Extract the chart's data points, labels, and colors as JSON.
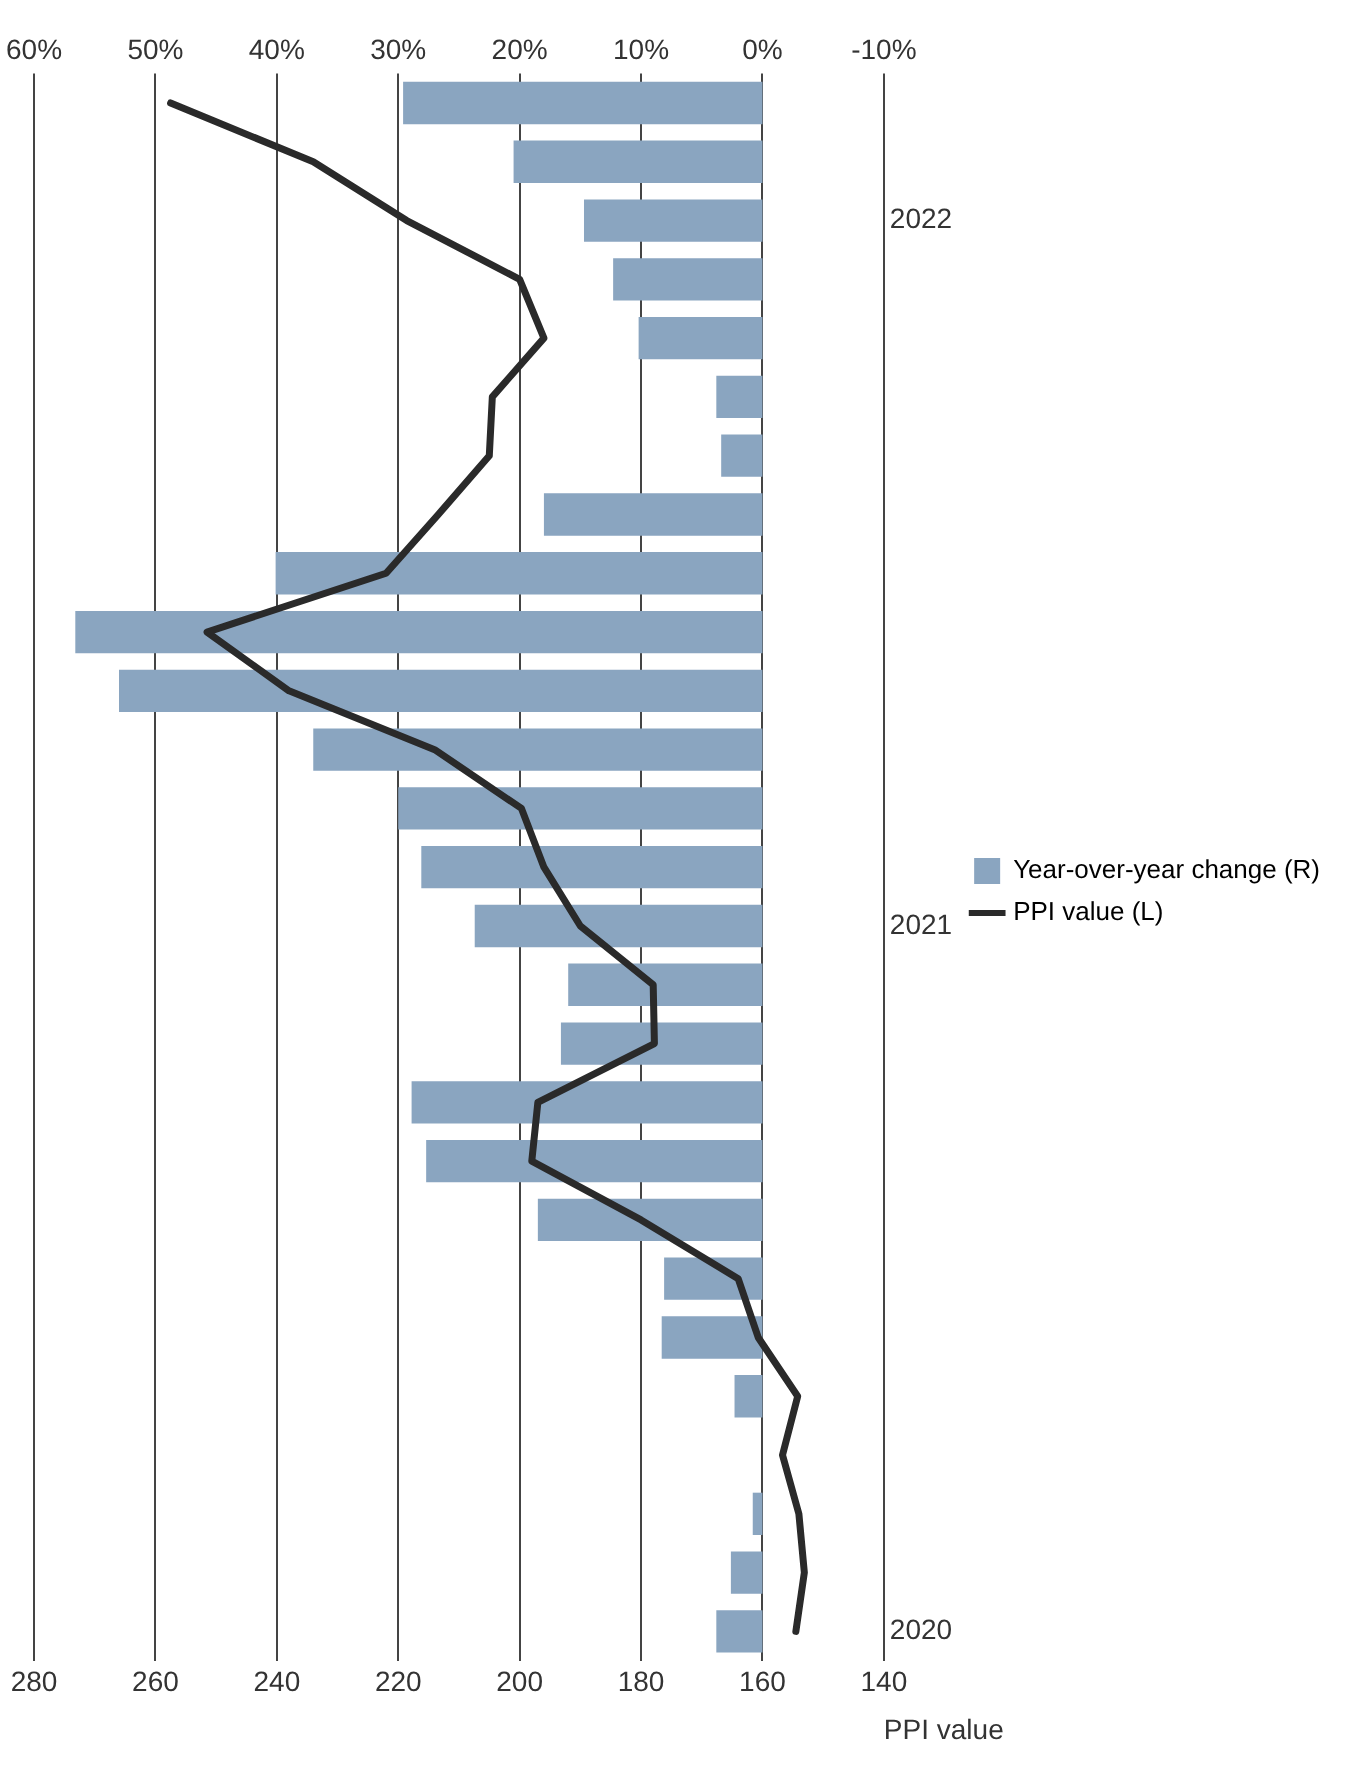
{
  "chart_data": {
    "type": "bar",
    "orientation": "horizontal",
    "xlabel": "PPI value",
    "categories": [
      null,
      null,
      "2022",
      null,
      null,
      null,
      null,
      null,
      null,
      null,
      null,
      null,
      null,
      null,
      "2021",
      null,
      null,
      null,
      null,
      null,
      null,
      null,
      null,
      null,
      null,
      null,
      "2020"
    ],
    "series": [
      {
        "name": "PPI value (L)",
        "type": "line",
        "color": "#2a2a2a",
        "marker": "none",
        "line_style": "solid",
        "values": [
          257.5,
          234,
          218.6,
          200,
          196,
          204.5,
          205,
          213.4,
          222,
          251.5,
          238,
          214,
          199.7,
          196,
          190,
          178,
          177.8,
          197,
          198,
          180,
          164,
          160.7,
          154.2,
          156.7,
          154,
          153.1,
          154.5
        ]
      },
      {
        "name": "Year-over-year change (R)",
        "color": "#8aa5c0",
        "axis": "x2",
        "values": [
          29.6,
          20.5,
          14.7,
          12.3,
          10.2,
          3.8,
          3.4,
          18,
          40.1,
          56.6,
          53,
          37,
          30,
          28.1,
          23.7,
          16,
          16.6,
          28.9,
          27.7,
          18.5,
          8.1,
          8.3,
          2.3,
          0,
          0.8,
          2.6,
          3.8
        ]
      }
    ],
    "xlim": [
      280,
      140
    ],
    "xticks": [
      280,
      260,
      240,
      220,
      200,
      180,
      160,
      140
    ],
    "x2lim": [
      60,
      -10
    ],
    "x2ticks": [
      {
        "value": 60,
        "label": "60%"
      },
      {
        "value": 50,
        "label": "50%"
      },
      {
        "value": 40,
        "label": "40%"
      },
      {
        "value": 30,
        "label": "30%"
      },
      {
        "value": 20,
        "label": "20%"
      },
      {
        "value": 10,
        "label": "10%"
      },
      {
        "value": 0,
        "label": "0%"
      },
      {
        "value": -10,
        "label": "-10%"
      }
    ],
    "grid": "x",
    "legend": "right"
  }
}
